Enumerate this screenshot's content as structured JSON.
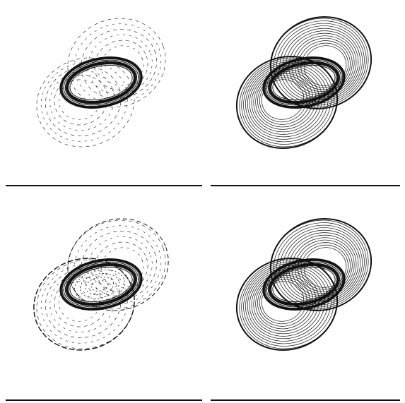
{
  "figure": {
    "panels": [
      {
        "id": "top-left",
        "variant": "inner-dominant"
      },
      {
        "id": "top-right",
        "variant": "dense-halo"
      },
      {
        "id": "bottom-left",
        "variant": "inner-structure"
      },
      {
        "id": "bottom-right",
        "variant": "dense-halo-alt"
      }
    ],
    "stroke_color": "#111111",
    "background_color": "#ffffff"
  }
}
